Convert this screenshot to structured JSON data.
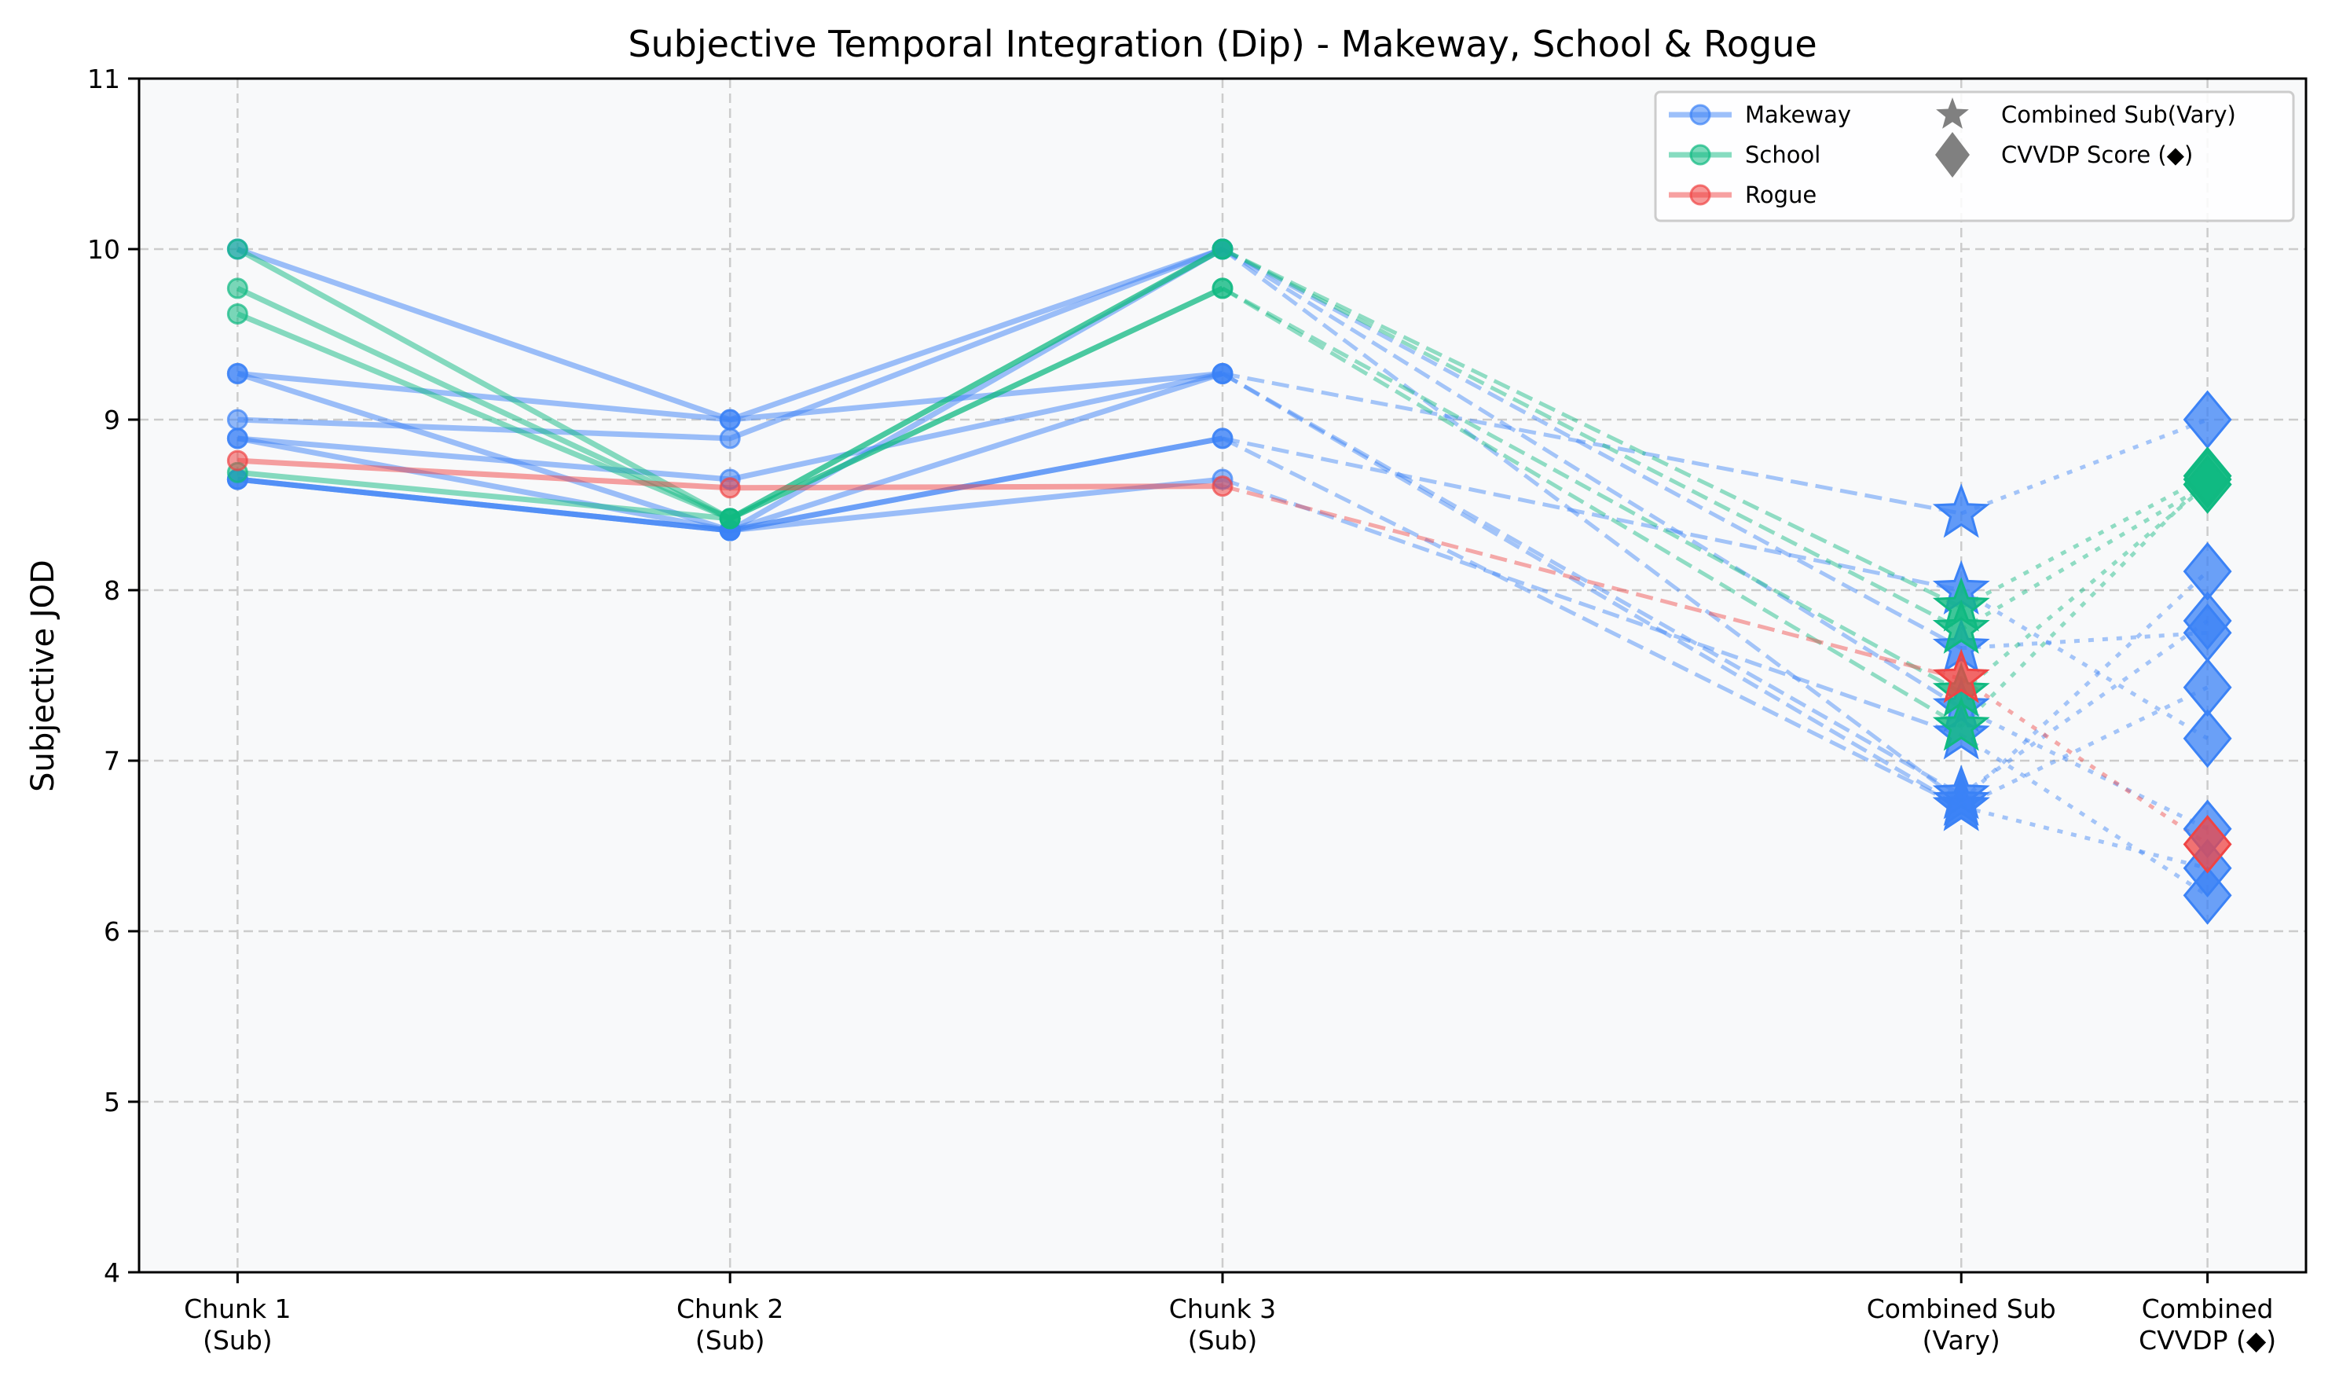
{
  "chart_data": {
    "type": "line",
    "title": "Subjective Temporal Integration (Dip) - Makeway, School & Rogue",
    "xlabel": "",
    "ylabel": "Subjective JOD",
    "ylim": [
      4,
      11
    ],
    "yticks": [
      4,
      5,
      6,
      7,
      8,
      9,
      10,
      11
    ],
    "grid": true,
    "legend_position": "top-right",
    "categories": [
      {
        "label": [
          "Chunk 1",
          "(Sub)"
        ],
        "x": 0
      },
      {
        "label": [
          "Chunk 2",
          "(Sub)"
        ],
        "x": 1
      },
      {
        "label": [
          "Chunk 3",
          "(Sub)"
        ],
        "x": 2
      },
      {
        "label": [
          "Combined Sub",
          "(Vary)"
        ],
        "x": 3.5
      },
      {
        "label": [
          "Combined",
          "CVVDP (◆)"
        ],
        "x": 4
      }
    ],
    "xlim": [
      -0.2,
      4.2
    ],
    "colors": {
      "Makeway": "#3b82f6",
      "School": "#10b981",
      "Rogue": "#ef4444",
      "legend_marker": "#808080",
      "grid": "#cccccc",
      "plot_bg": "#f8f9fa"
    },
    "legend": [
      {
        "label": "Makeway",
        "kind": "line",
        "group": "Makeway"
      },
      {
        "label": "School",
        "kind": "line",
        "group": "School"
      },
      {
        "label": "Rogue",
        "kind": "line",
        "group": "Rogue"
      },
      {
        "label": "Combined Sub(Vary)",
        "kind": "star"
      },
      {
        "label": "CVVDP Score (◆)",
        "kind": "diamond"
      }
    ],
    "series": [
      {
        "group": "Makeway",
        "chunks": [
          10.0,
          9.0,
          10.0
        ],
        "combined_sub": 7.66,
        "cvvdp": 7.75
      },
      {
        "group": "Makeway",
        "chunks": [
          9.27,
          9.0,
          9.27
        ],
        "combined_sub": 8.45,
        "cvvdp": 9.0
      },
      {
        "group": "Makeway",
        "chunks": [
          9.27,
          8.35,
          10.0
        ],
        "combined_sub": 7.31,
        "cvvdp": 6.6
      },
      {
        "group": "Makeway",
        "chunks": [
          9.0,
          8.89,
          10.0
        ],
        "combined_sub": 6.76,
        "cvvdp": 8.11
      },
      {
        "group": "Makeway",
        "chunks": [
          8.89,
          8.65,
          9.27
        ],
        "combined_sub": 6.73,
        "cvvdp": 6.37
      },
      {
        "group": "Makeway",
        "chunks": [
          8.89,
          8.35,
          8.89
        ],
        "combined_sub": 8.0,
        "cvvdp": 7.13
      },
      {
        "group": "Makeway",
        "chunks": [
          8.65,
          8.35,
          8.65
        ],
        "combined_sub": 7.15,
        "cvvdp": 6.21
      },
      {
        "group": "Makeway",
        "chunks": [
          8.65,
          8.35,
          9.27
        ],
        "combined_sub": 6.8,
        "cvvdp": 7.82
      },
      {
        "group": "Makeway",
        "chunks": [
          8.65,
          8.35,
          8.89
        ],
        "combined_sub": 6.73,
        "cvvdp": 7.43
      },
      {
        "group": "School",
        "chunks": [
          10.0,
          8.42,
          10.0
        ],
        "combined_sub": 7.9,
        "cvvdp": 8.67
      },
      {
        "group": "School",
        "chunks": [
          9.77,
          8.42,
          10.0
        ],
        "combined_sub": 7.77,
        "cvvdp": 8.62
      },
      {
        "group": "School",
        "chunks": [
          9.62,
          8.42,
          9.77
        ],
        "combined_sub": 7.2,
        "cvvdp": 8.65
      },
      {
        "group": "School",
        "chunks": [
          8.69,
          8.42,
          9.77
        ],
        "combined_sub": 7.4,
        "cvvdp": 8.62
      },
      {
        "group": "Rogue",
        "chunks": [
          8.76,
          8.6,
          8.61
        ],
        "combined_sub": 7.48,
        "cvvdp": 6.51
      }
    ]
  }
}
